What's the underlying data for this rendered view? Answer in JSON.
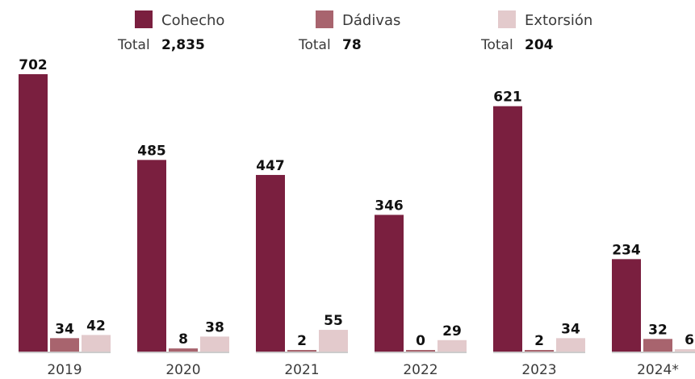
{
  "chart_data": {
    "type": "bar",
    "categories": [
      "2019",
      "2020",
      "2021",
      "2022",
      "2023",
      "2024*"
    ],
    "series": [
      {
        "name": "Cohecho",
        "values": [
          702,
          485,
          447,
          346,
          621,
          234
        ],
        "total_label": "Total",
        "total": "2,835",
        "color": "#7a1f3f"
      },
      {
        "name": "Dádivas",
        "values": [
          34,
          8,
          2,
          0,
          2,
          32
        ],
        "total_label": "Total",
        "total": "78",
        "color": "#a8646e"
      },
      {
        "name": "Extorsión",
        "values": [
          42,
          38,
          55,
          29,
          34,
          6
        ],
        "total_label": "Total",
        "total": "204",
        "color": "#e3cacc"
      }
    ],
    "ylim": [
      0,
      702
    ],
    "grid": false,
    "legend_position": "top",
    "data_labels": true
  }
}
